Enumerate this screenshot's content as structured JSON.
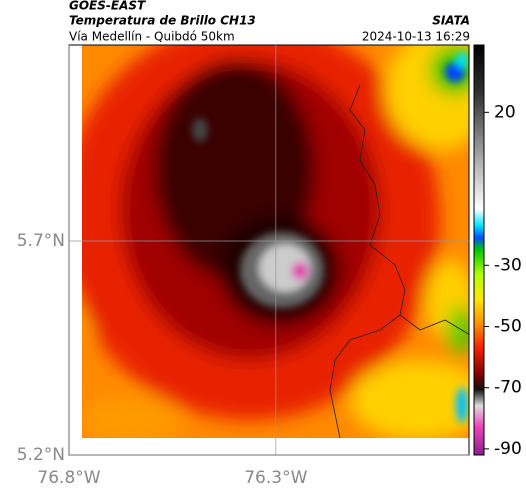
{
  "header": {
    "satellite": "GOES-EAST",
    "product": "Temperatura de Brillo CH13",
    "source": "SIATA",
    "region": "Vía Medellín - Quibdó 50km",
    "datetime": "2024-10-13 16:29"
  },
  "map": {
    "latlim": [
      5.2,
      6.158
    ],
    "lonlim": [
      -76.8,
      -75.833
    ],
    "lat_ticks": [
      {
        "value": 5.2,
        "label": "5.2°N"
      },
      {
        "value": 5.7,
        "label": "5.7°N"
      }
    ],
    "lon_ticks": [
      {
        "value": -76.8,
        "label": "76.8°W"
      },
      {
        "value": -76.3,
        "label": "76.3°W"
      }
    ]
  },
  "colorbar": {
    "lim": [
      -92,
      42
    ],
    "ticks": [
      20,
      -30,
      -50,
      -70,
      -90
    ]
  }
}
